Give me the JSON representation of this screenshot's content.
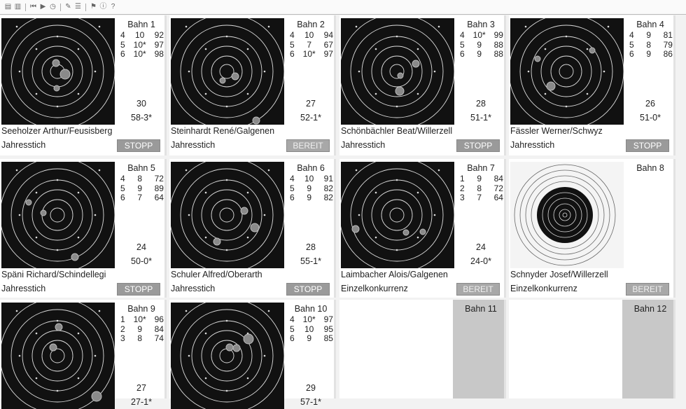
{
  "toolbar": {
    "icons": [
      "print-icon",
      "save-icon",
      "first-icon",
      "play-icon",
      "timer-icon",
      "tool-icon",
      "list-icon",
      "flag-icon",
      "info-icon",
      "help-icon"
    ]
  },
  "lanes": [
    {
      "title": "Bahn 1",
      "shots": [
        [
          "4",
          "10",
          "92"
        ],
        [
          "5",
          "10*",
          "97"
        ],
        [
          "6",
          "10*",
          "98"
        ]
      ],
      "total": "30",
      "score": "58-3*",
      "shooter": "Seeholzer Arthur/Feusisberg",
      "program": "Jahresstich",
      "status": "STOPP",
      "status_type": "stop"
    },
    {
      "title": "Bahn 2",
      "shots": [
        [
          "4",
          "10",
          "94"
        ],
        [
          "5",
          "7",
          "67"
        ],
        [
          "6",
          "10*",
          "97"
        ]
      ],
      "total": "27",
      "score": "52-1*",
      "shooter": "Steinhardt René/Galgenen",
      "program": "Jahresstich",
      "status": "BEREIT",
      "status_type": "ready"
    },
    {
      "title": "Bahn 3",
      "shots": [
        [
          "4",
          "10*",
          "99"
        ],
        [
          "5",
          "9",
          "88"
        ],
        [
          "6",
          "9",
          "88"
        ]
      ],
      "total": "28",
      "score": "51-1*",
      "shooter": "Schönbächler Beat/Willerzell",
      "program": "Jahresstich",
      "status": "STOPP",
      "status_type": "stop"
    },
    {
      "title": "Bahn 4",
      "shots": [
        [
          "4",
          "9",
          "81"
        ],
        [
          "5",
          "8",
          "79"
        ],
        [
          "6",
          "9",
          "86"
        ]
      ],
      "total": "26",
      "score": "51-0*",
      "shooter": "Fässler Werner/Schwyz",
      "program": "Jahresstich",
      "status": "STOPP",
      "status_type": "stop"
    },
    {
      "title": "Bahn 5",
      "shots": [
        [
          "4",
          "8",
          "72"
        ],
        [
          "5",
          "9",
          "89"
        ],
        [
          "6",
          "7",
          "64"
        ]
      ],
      "total": "24",
      "score": "50-0*",
      "shooter": "Späni Richard/Schindellegi",
      "program": "Jahresstich",
      "status": "STOPP",
      "status_type": "stop"
    },
    {
      "title": "Bahn 6",
      "shots": [
        [
          "4",
          "10",
          "91"
        ],
        [
          "5",
          "9",
          "82"
        ],
        [
          "6",
          "9",
          "82"
        ]
      ],
      "total": "28",
      "score": "55-1*",
      "shooter": "Schuler Alfred/Oberarth",
      "program": "Jahresstich",
      "status": "STOPP",
      "status_type": "stop"
    },
    {
      "title": "Bahn 7",
      "shots": [
        [
          "1",
          "9",
          "84"
        ],
        [
          "2",
          "8",
          "72"
        ],
        [
          "3",
          "7",
          "64"
        ]
      ],
      "total": "24",
      "score": "24-0*",
      "shooter": "Laimbacher Alois/Galgenen",
      "program": "Einzelkonkurrenz",
      "status": "BEREIT",
      "status_type": "ready"
    },
    {
      "title": "Bahn 8",
      "shots": [],
      "total": "",
      "score": "",
      "shooter": "Schnyder Josef/Willerzell",
      "program": "Einzelkonkurrenz",
      "status": "BEREIT",
      "status_type": "ready"
    },
    {
      "title": "Bahn 9",
      "shots": [
        [
          "1",
          "10*",
          "96"
        ],
        [
          "2",
          "9",
          "84"
        ],
        [
          "3",
          "8",
          "74"
        ]
      ],
      "total": "27",
      "score": "27-1*",
      "shooter": "",
      "program": "",
      "status": "",
      "status_type": ""
    },
    {
      "title": "Bahn 10",
      "shots": [
        [
          "4",
          "10*",
          "97"
        ],
        [
          "5",
          "10",
          "95"
        ],
        [
          "6",
          "9",
          "85"
        ]
      ],
      "total": "29",
      "score": "57-1*",
      "shooter": "",
      "program": "",
      "status": "",
      "status_type": ""
    },
    {
      "title": "Bahn 11",
      "shots": [],
      "total": "",
      "score": "",
      "shooter": "",
      "program": "",
      "status": "",
      "status_type": ""
    },
    {
      "title": "Bahn 12",
      "shots": [],
      "total": "",
      "score": "",
      "shooter": "",
      "program": "",
      "status": "",
      "status_type": ""
    }
  ],
  "colors": {
    "target_black": "#111111",
    "shot": "#888888",
    "button_grey": "#9a9a9a"
  }
}
